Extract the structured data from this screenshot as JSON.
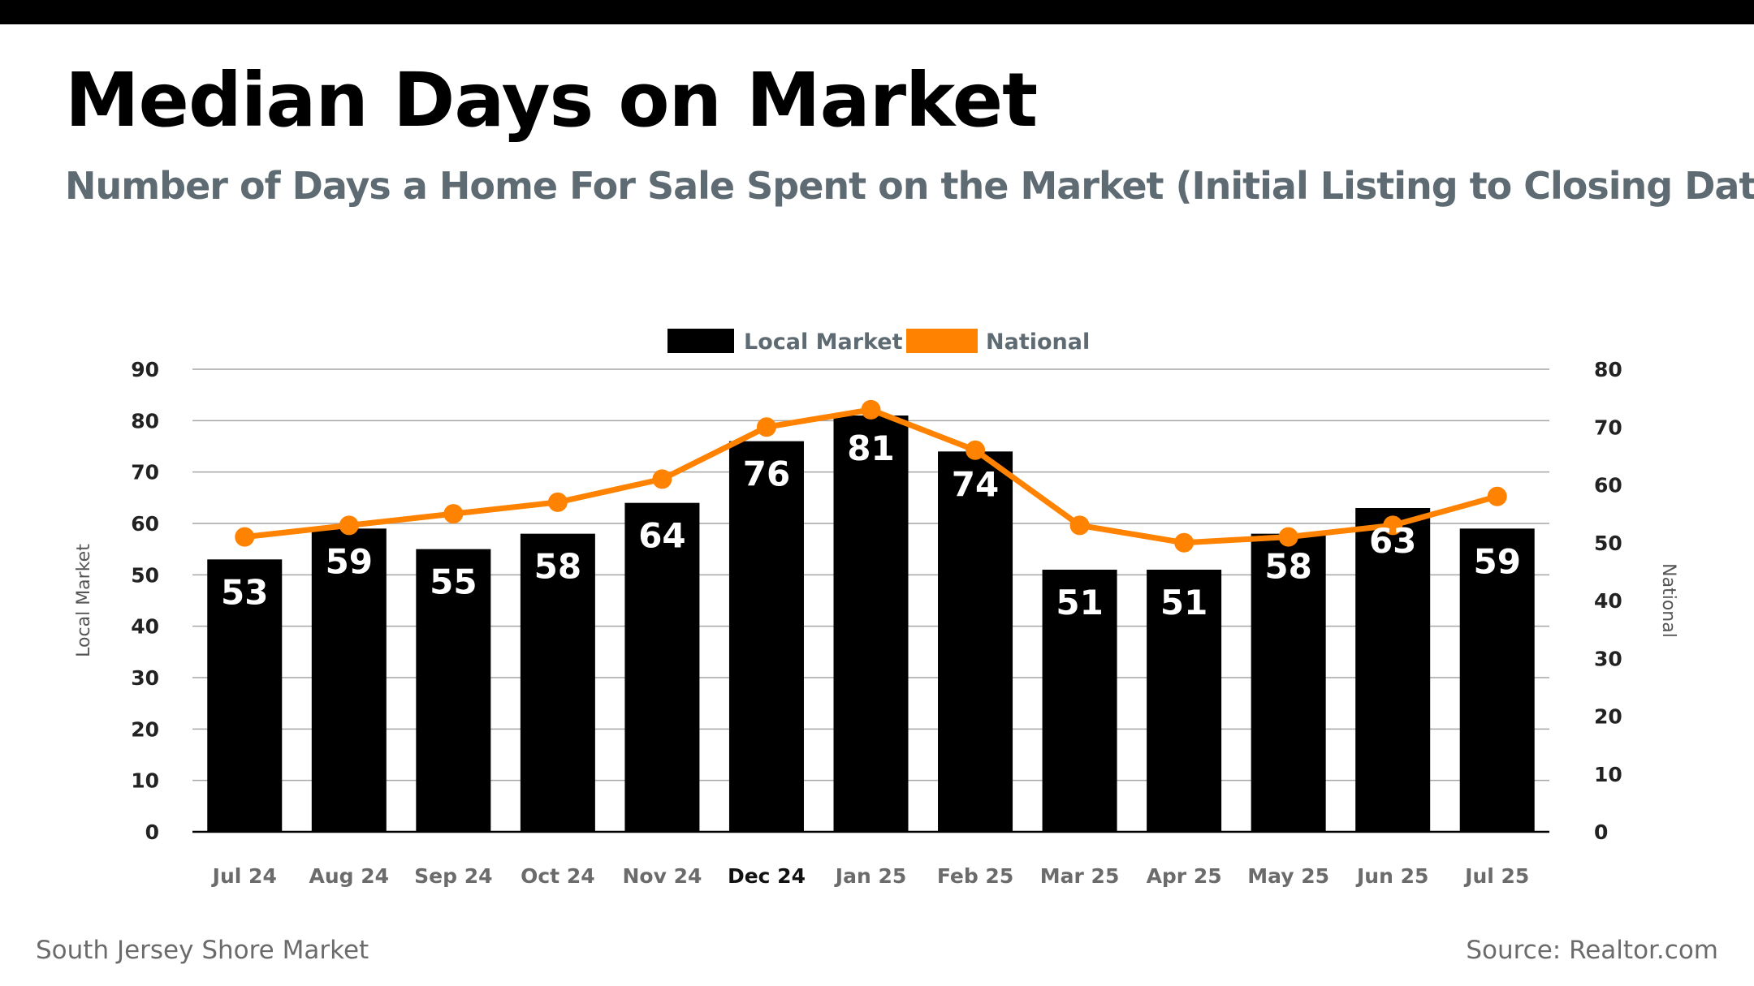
{
  "title": "Median Days on Market",
  "subtitle": "Number of Days a Home For Sale Spent on the Market (Initial Listing to Closing Date)",
  "footer": {
    "left": "South Jersey Shore Market",
    "right": "Source: Realtor.com"
  },
  "colors": {
    "local": "#000000",
    "national": "#ff8200",
    "subtitle": "#5e6b73",
    "tick_label": "#6b6b6b",
    "axis_label": "#555555"
  },
  "chart_data": {
    "type": "bar",
    "categories": [
      "Jul 24",
      "Aug 24",
      "Sep 24",
      "Oct 24",
      "Nov 24",
      "Dec 24",
      "Jan 25",
      "Feb 25",
      "Mar 25",
      "Apr 25",
      "May 25",
      "Jun 25",
      "Jul 25"
    ],
    "highlighted_category": "Dec 24",
    "series": [
      {
        "name": "Local Market",
        "type": "bar",
        "axis": "left",
        "color": "#000000",
        "values": [
          53,
          59,
          55,
          58,
          64,
          76,
          81,
          74,
          51,
          51,
          58,
          63,
          59
        ],
        "data_labels": [
          "53",
          "59",
          "55",
          "58",
          "64",
          "76",
          "81",
          "74",
          "51",
          "51",
          "58",
          "63",
          "59"
        ]
      },
      {
        "name": "National",
        "type": "line",
        "axis": "right",
        "color": "#ff8200",
        "values": [
          51,
          53,
          55,
          57,
          61,
          70,
          73,
          66,
          53,
          50,
          51,
          53,
          58
        ]
      }
    ],
    "ylabel_left": "Local Market",
    "ylabel_right": "National",
    "ylim_left": [
      0,
      90
    ],
    "ylim_right": [
      0,
      80
    ],
    "yticks_left": [
      0,
      10,
      20,
      30,
      40,
      50,
      60,
      70,
      80,
      90
    ],
    "yticks_right": [
      0,
      10,
      20,
      30,
      40,
      50,
      60,
      70,
      80
    ],
    "grid": true,
    "legend": "top-center"
  }
}
